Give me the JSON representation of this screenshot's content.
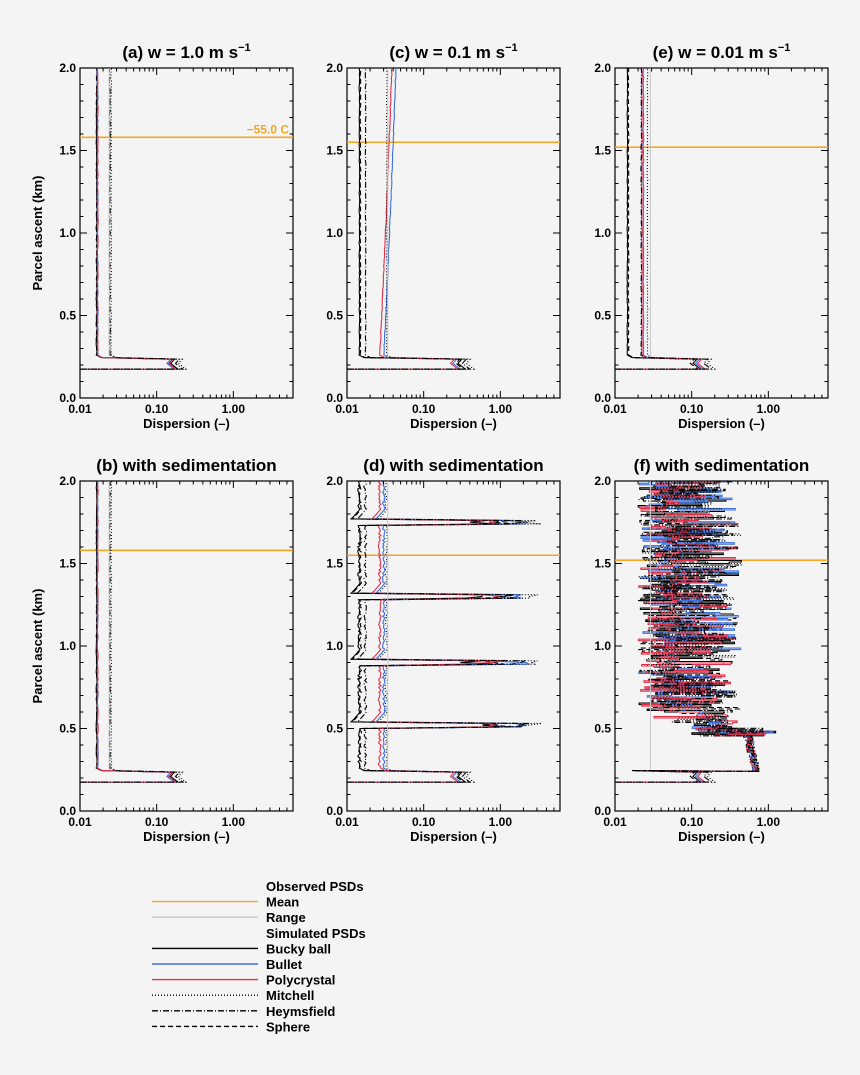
{
  "chart_data": [
    {
      "id": "a",
      "type": "line",
      "title": "(a) w = 1.0 m s",
      "title_sup": "−1",
      "xlabel": "Dispersion (–)",
      "ylabel": "Parcel ascent (km)",
      "xscale": "log",
      "xlim": [
        0.01,
        6
      ],
      "ylim": [
        0,
        2
      ],
      "xticks": [
        "0.01",
        "0.10",
        "1.00"
      ],
      "yticks": [
        "0.0",
        "0.5",
        "1.0",
        "1.5",
        "2.0"
      ],
      "mean_line_km": 1.58,
      "annotation": "−55.0 C",
      "sedimentation": false
    },
    {
      "id": "c",
      "type": "line",
      "title": "(c) w = 0.1 m s",
      "title_sup": "−1",
      "xlabel": "Dispersion (–)",
      "ylabel": "",
      "xscale": "log",
      "xlim": [
        0.01,
        6
      ],
      "ylim": [
        0,
        2
      ],
      "xticks": [
        "0.01",
        "0.10",
        "1.00"
      ],
      "yticks": [
        "0.0",
        "0.5",
        "1.0",
        "1.5",
        "2.0"
      ],
      "mean_line_km": 1.55,
      "sedimentation": false
    },
    {
      "id": "e",
      "type": "line",
      "title": "(e) w = 0.01 m s",
      "title_sup": "−1",
      "xlabel": "Dispersion (–)",
      "ylabel": "",
      "xscale": "log",
      "xlim": [
        0.01,
        6
      ],
      "ylim": [
        0,
        2
      ],
      "xticks": [
        "0.01",
        "0.10",
        "1.00"
      ],
      "yticks": [
        "0.0",
        "0.5",
        "1.0",
        "1.5",
        "2.0"
      ],
      "mean_line_km": 1.52,
      "sedimentation": false
    },
    {
      "id": "b",
      "type": "line",
      "title": "(b) with sedimentation",
      "title_sup": "",
      "xlabel": "Dispersion (–)",
      "ylabel": "Parcel ascent (km)",
      "xscale": "log",
      "xlim": [
        0.01,
        6
      ],
      "ylim": [
        0,
        2
      ],
      "xticks": [
        "0.01",
        "0.10",
        "1.00"
      ],
      "yticks": [
        "0.0",
        "0.5",
        "1.0",
        "1.5",
        "2.0"
      ],
      "mean_line_km": 1.58,
      "sedimentation": true
    },
    {
      "id": "d",
      "type": "line",
      "title": "(d) with sedimentation",
      "title_sup": "",
      "xlabel": "Dispersion (–)",
      "ylabel": "",
      "xscale": "log",
      "xlim": [
        0.01,
        6
      ],
      "ylim": [
        0,
        2
      ],
      "xticks": [
        "0.01",
        "0.10",
        "1.00"
      ],
      "yticks": [
        "0.0",
        "0.5",
        "1.0",
        "1.5",
        "2.0"
      ],
      "mean_line_km": 1.55,
      "sedimentation": true
    },
    {
      "id": "f",
      "type": "line",
      "title": "(f) with sedimentation",
      "title_sup": "",
      "xlabel": "Dispersion (–)",
      "ylabel": "",
      "xscale": "log",
      "xlim": [
        0.01,
        6
      ],
      "ylim": [
        0,
        2
      ],
      "xticks": [
        "0.01",
        "0.10",
        "1.00"
      ],
      "yticks": [
        "0.0",
        "0.5",
        "1.0",
        "1.5",
        "2.0"
      ],
      "mean_line_km": 1.52,
      "sedimentation": true
    }
  ],
  "legend": [
    {
      "label": "Observed PSDs",
      "color": "#f4f4f4",
      "dash": ""
    },
    {
      "label": "Mean",
      "color": "#f5a623",
      "dash": ""
    },
    {
      "label": "Range",
      "color": "#c8c8c8",
      "dash": ""
    },
    {
      "label": "Simulated PSDs",
      "color": "#f4f4f4",
      "dash": ""
    },
    {
      "label": "Bucky ball",
      "color": "#000000",
      "dash": ""
    },
    {
      "label": "Bullet",
      "color": "#3b6fe0",
      "dash": ""
    },
    {
      "label": "Polycrystal",
      "color": "#e0314b",
      "dash": ""
    },
    {
      "label": "Mitchell",
      "color": "#000000",
      "dash": "1,2"
    },
    {
      "label": "Heymsfield",
      "color": "#000000",
      "dash": "6,2,1,2"
    },
    {
      "label": "Sphere",
      "color": "#000000",
      "dash": "5,3"
    }
  ],
  "colors": {
    "mean": "#f5a623",
    "range": "#c8c8c8",
    "bucky": "#000000",
    "bullet": "#3b6fe0",
    "poly": "#e0314b"
  }
}
